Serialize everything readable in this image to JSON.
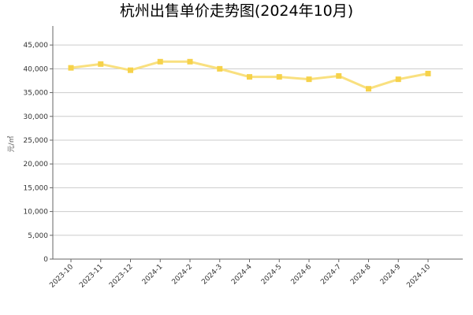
{
  "chart_data": {
    "type": "line",
    "title": "杭州出售单价走势图(2024年10月)",
    "ylabel": "元/㎡",
    "xlabel": "",
    "categories": [
      "2023-10",
      "2023-11",
      "2023-12",
      "2024-1",
      "2024-2",
      "2024-3",
      "2024-4",
      "2024-5",
      "2024-6",
      "2024-7",
      "2024-8",
      "2024-9",
      "2024-10"
    ],
    "series": [
      {
        "values": [
          40200,
          41000,
          39700,
          41500,
          41500,
          40000,
          38300,
          38300,
          37800,
          38500,
          35800,
          37800,
          39000
        ]
      }
    ],
    "yticks": [
      "0",
      "5,000",
      "10,000",
      "15,000",
      "20,000",
      "25,000",
      "30,000",
      "35,000",
      "40,000",
      "45,000"
    ],
    "ylim": [
      0,
      49000
    ],
    "grid": true,
    "legend": "none",
    "colors": {
      "line": "#f9e07f",
      "marker": "#f6d24a",
      "grid": "#cccccc",
      "axis": "#666666"
    }
  }
}
